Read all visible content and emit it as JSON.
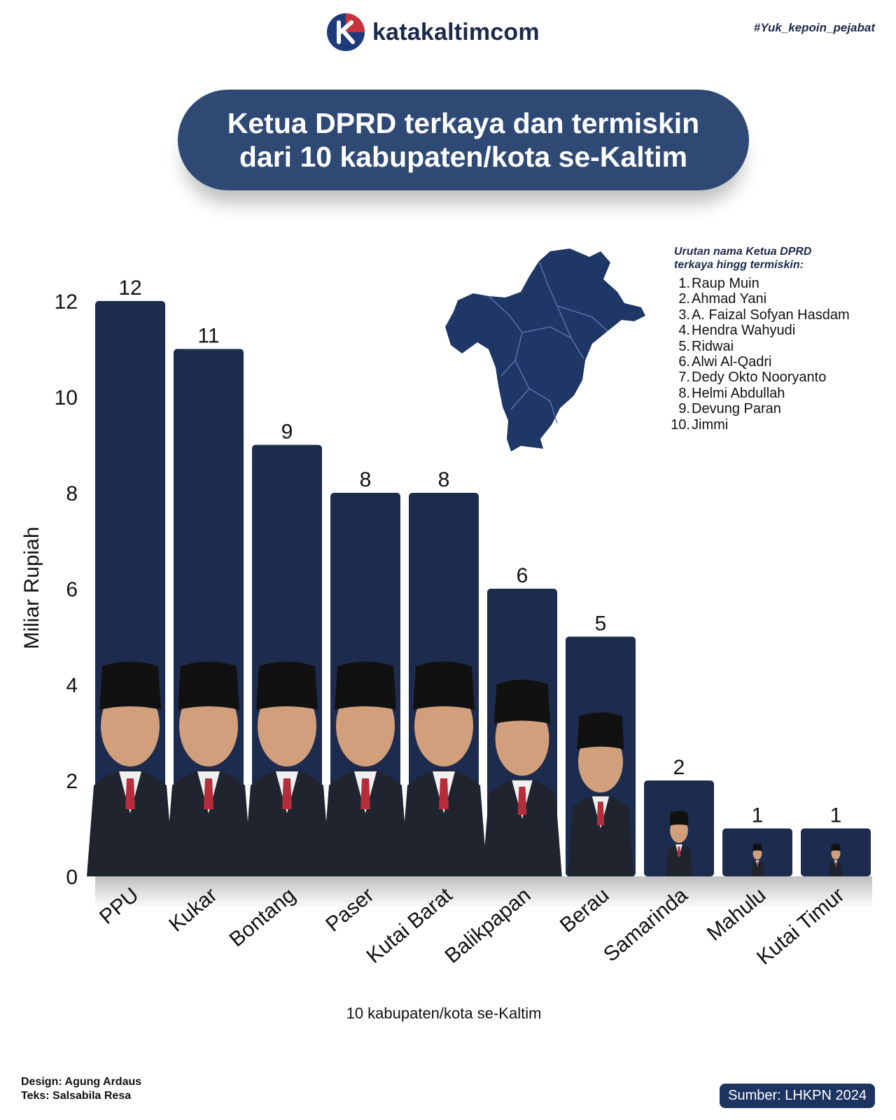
{
  "header": {
    "brand": "katakaltimcom",
    "hashtag": "#Yuk_kepoin_pejabat"
  },
  "title": {
    "line1": "Ketua DPRD terkaya dan termiskin",
    "line2": "dari 10 kabupaten/kota se-Kaltim"
  },
  "legend": {
    "title_line1": "Urutan nama Ketua DPRD",
    "title_line2": "terkaya hingg termiskin:",
    "items": [
      "Raup Muin",
      "Ahmad Yani",
      "A. Faizal Sofyan Hasdam",
      "Hendra Wahyudi",
      "Ridwai",
      "Alwi Al-Qadri",
      "Dedy Okto Nooryanto",
      "Helmi Abdullah",
      "Devung Paran",
      "Jimmi"
    ]
  },
  "chart_data": {
    "type": "bar",
    "categories": [
      "PPU",
      "Kukar",
      "Bontang",
      "Paser",
      "Kutai Barat",
      "Balikpapan",
      "Berau",
      "Samarinda",
      "Mahulu",
      "Kutai Timur"
    ],
    "values": [
      12,
      11,
      9,
      8,
      8,
      6,
      5,
      2,
      1,
      1
    ],
    "ylabel": "Miliar Rupiah",
    "xlabel": "10 kabupaten/kota se-Kaltim",
    "ylim": [
      0,
      12
    ],
    "yticks": [
      0,
      2,
      4,
      6,
      8,
      10,
      12
    ],
    "grid": false,
    "bar_color": "#1d2b4e"
  },
  "footer": {
    "design": "Design: Agung Ardaus",
    "text": "Teks: Salsabila Resa",
    "source": "Sumber: LHKPN 2024"
  },
  "colors": {
    "navy": "#1d2b4e",
    "pill": "#2f4975",
    "map": "#1f3766"
  },
  "icons": {
    "logo": "k-logo-icon",
    "map": "east-kalimantan-map-icon"
  }
}
